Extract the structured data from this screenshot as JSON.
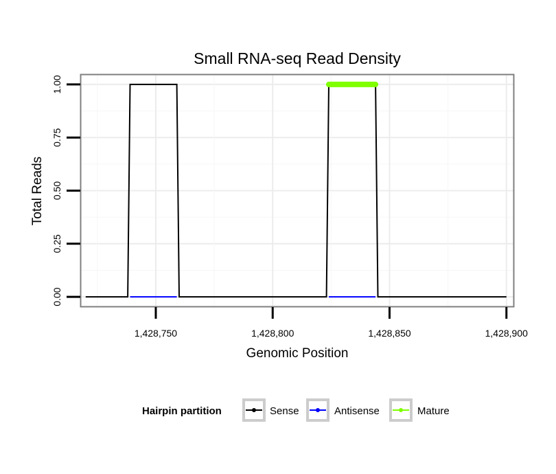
{
  "chart_data": {
    "type": "line",
    "title": "Small RNA-seq Read Density",
    "xlabel": "Genomic Position",
    "ylabel": "Total Reads",
    "xlim": [
      1428718,
      1428903
    ],
    "ylim": [
      -0.045,
      1.045
    ],
    "x_ticks": [
      1428750,
      1428800,
      1428850,
      1428900
    ],
    "x_tick_labels": [
      "1,428,750",
      "1,428,800",
      "1,428,850",
      "1,428,900"
    ],
    "y_ticks": [
      0,
      0.25,
      0.5,
      0.75,
      1
    ],
    "y_tick_labels": [
      "0.00",
      "0.25",
      "0.50",
      "0.75",
      "1.00"
    ],
    "grid": true,
    "legend": {
      "title": "Hairpin partition",
      "position": "bottom",
      "entries": [
        "Sense",
        "Antisense",
        "Mature"
      ]
    },
    "series": [
      {
        "name": "Sense",
        "color": "#000000",
        "x": [
          1428720,
          1428738,
          1428739,
          1428759,
          1428760,
          1428823,
          1428824,
          1428844,
          1428845,
          1428900
        ],
        "y": [
          0,
          0,
          1,
          1,
          0,
          0,
          1,
          1,
          0,
          0
        ]
      },
      {
        "name": "Antisense",
        "color": "#0000ff",
        "x": [
          1428739,
          1428759,
          1428824,
          1428844
        ],
        "y": [
          0,
          0,
          0,
          0
        ]
      },
      {
        "name": "Mature",
        "color": "#7fff00",
        "x": [
          1428824,
          1428844
        ],
        "y": [
          1,
          1
        ]
      }
    ]
  }
}
